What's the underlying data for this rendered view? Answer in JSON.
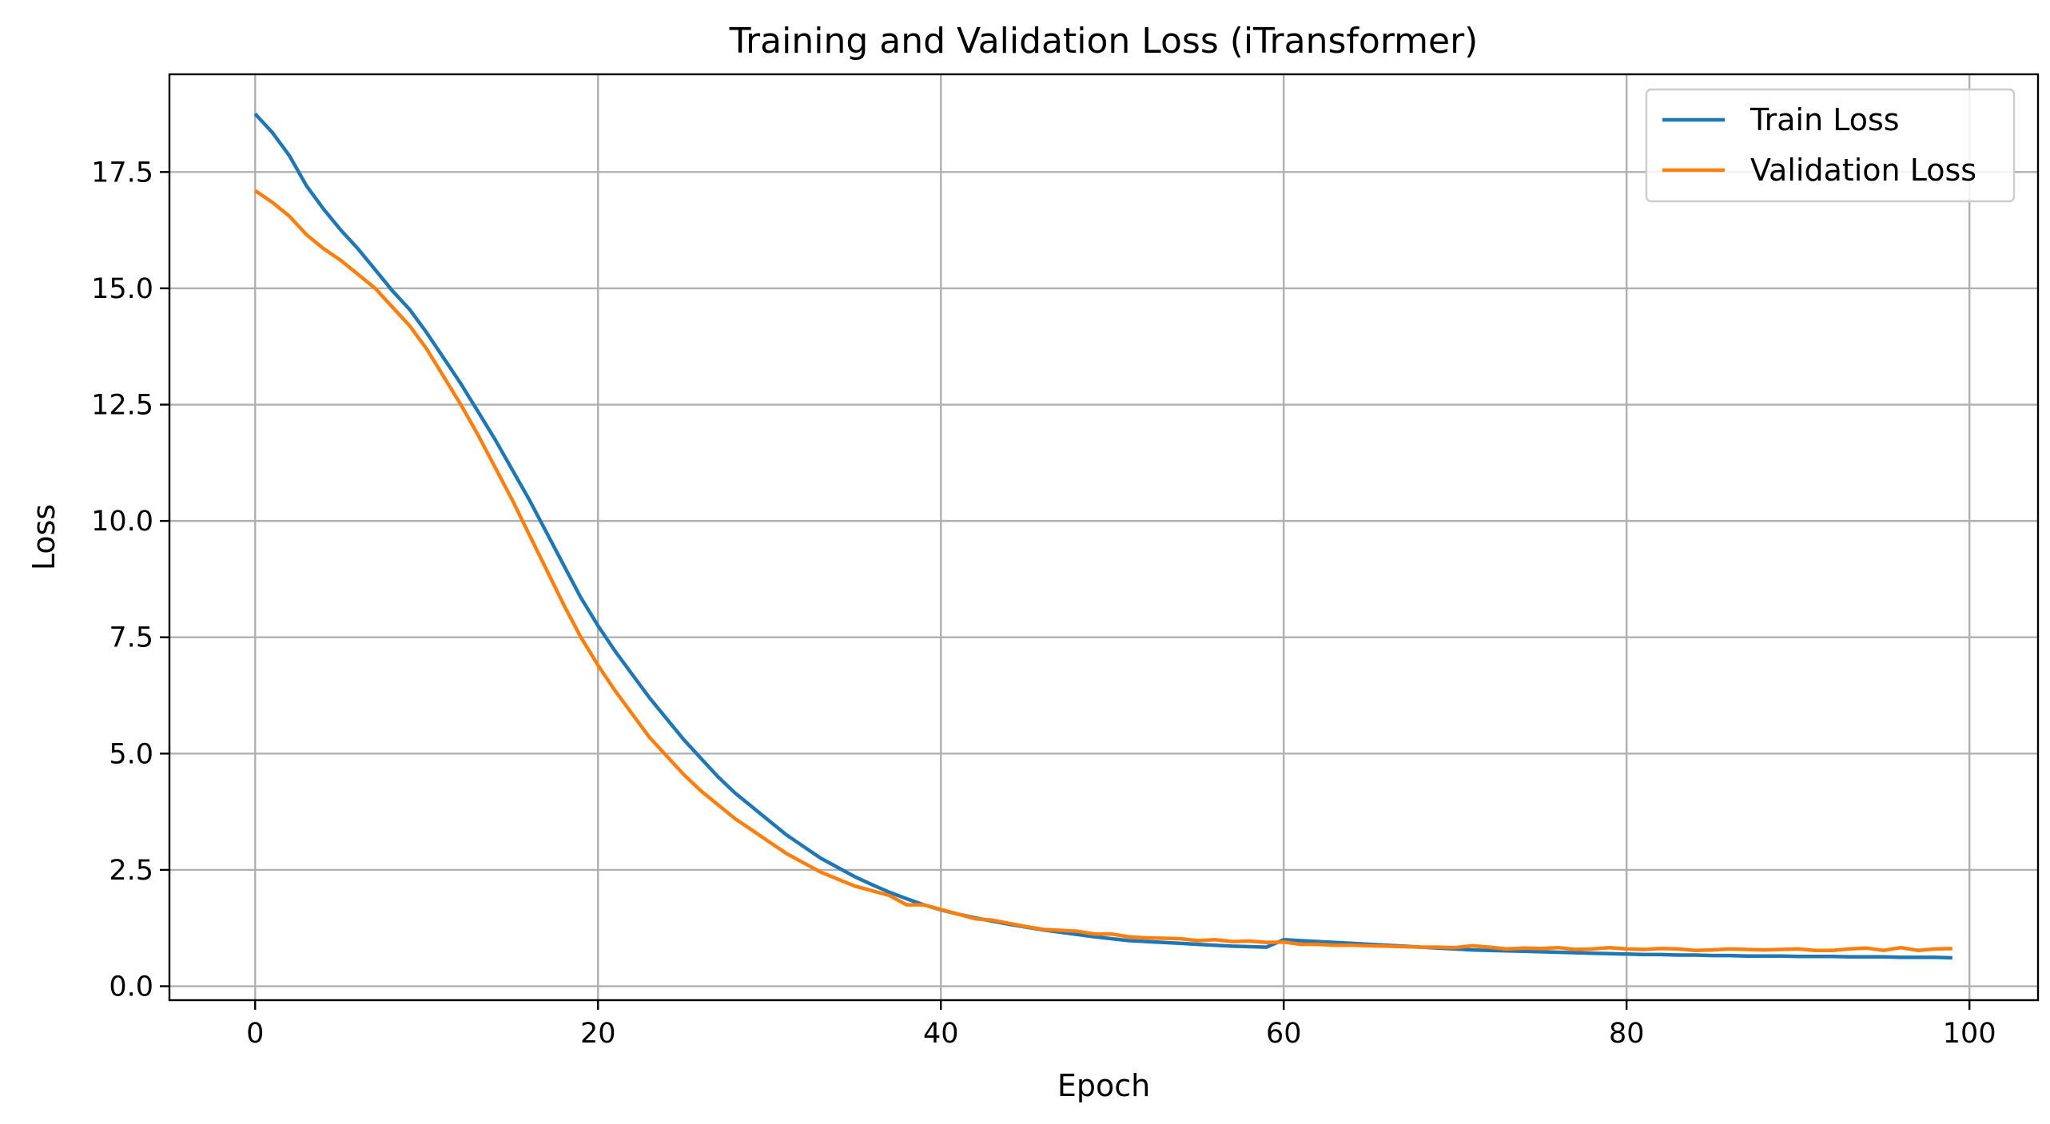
{
  "chart_data": {
    "type": "line",
    "title": "Training and Validation Loss (iTransformer)",
    "xlabel": "Epoch",
    "ylabel": "Loss",
    "xlim": [
      -5,
      104
    ],
    "ylim": [
      -0.3,
      19.6
    ],
    "xticks": [
      0,
      20,
      40,
      60,
      80,
      100
    ],
    "yticks": [
      0.0,
      2.5,
      5.0,
      7.5,
      10.0,
      12.5,
      15.0,
      17.5
    ],
    "x_tick_labels": [
      "0",
      "20",
      "40",
      "60",
      "80",
      "100"
    ],
    "y_tick_labels": [
      "0.0",
      "2.5",
      "5.0",
      "7.5",
      "10.0",
      "12.5",
      "15.0",
      "17.5"
    ],
    "grid": true,
    "legend": "upper-right",
    "x": [
      0,
      1,
      2,
      3,
      4,
      5,
      6,
      7,
      8,
      9,
      10,
      11,
      12,
      13,
      14,
      15,
      16,
      17,
      18,
      19,
      20,
      21,
      22,
      23,
      24,
      25,
      26,
      27,
      28,
      29,
      30,
      31,
      32,
      33,
      34,
      35,
      36,
      37,
      38,
      39,
      40,
      41,
      42,
      43,
      44,
      45,
      46,
      47,
      48,
      49,
      50,
      51,
      52,
      53,
      54,
      55,
      56,
      57,
      58,
      59,
      60,
      61,
      62,
      63,
      64,
      65,
      66,
      67,
      68,
      69,
      70,
      71,
      72,
      73,
      74,
      75,
      76,
      77,
      78,
      79,
      80,
      81,
      82,
      83,
      84,
      85,
      86,
      87,
      88,
      89,
      90,
      91,
      92,
      93,
      94,
      95,
      96,
      97,
      98,
      99
    ],
    "series": [
      {
        "name": "Train Loss",
        "color": "#1f77b4",
        "values": [
          18.75,
          18.35,
          17.85,
          17.2,
          16.7,
          16.25,
          15.85,
          15.4,
          14.95,
          14.55,
          14.05,
          13.5,
          12.95,
          12.35,
          11.75,
          11.1,
          10.45,
          9.75,
          9.05,
          8.35,
          7.75,
          7.2,
          6.7,
          6.2,
          5.75,
          5.3,
          4.9,
          4.5,
          4.15,
          3.85,
          3.55,
          3.25,
          3.0,
          2.75,
          2.55,
          2.35,
          2.18,
          2.02,
          1.88,
          1.75,
          1.64,
          1.55,
          1.47,
          1.4,
          1.33,
          1.27,
          1.21,
          1.16,
          1.11,
          1.06,
          1.02,
          0.98,
          0.96,
          0.94,
          0.92,
          0.9,
          0.88,
          0.86,
          0.85,
          0.84,
          1.0,
          0.98,
          0.96,
          0.94,
          0.92,
          0.9,
          0.88,
          0.86,
          0.84,
          0.82,
          0.8,
          0.78,
          0.77,
          0.76,
          0.75,
          0.74,
          0.73,
          0.72,
          0.71,
          0.7,
          0.69,
          0.68,
          0.68,
          0.67,
          0.67,
          0.66,
          0.66,
          0.65,
          0.65,
          0.65,
          0.64,
          0.64,
          0.64,
          0.63,
          0.63,
          0.63,
          0.62,
          0.62,
          0.62,
          0.61
        ]
      },
      {
        "name": "Validation Loss",
        "color": "#ff7f0e",
        "values": [
          17.1,
          16.85,
          16.55,
          16.15,
          15.85,
          15.6,
          15.3,
          15.0,
          14.6,
          14.2,
          13.7,
          13.1,
          12.5,
          11.85,
          11.15,
          10.45,
          9.7,
          8.95,
          8.2,
          7.5,
          6.9,
          6.35,
          5.85,
          5.35,
          4.95,
          4.55,
          4.2,
          3.9,
          3.6,
          3.35,
          3.1,
          2.85,
          2.65,
          2.45,
          2.3,
          2.15,
          2.05,
          1.95,
          1.75,
          1.75,
          1.65,
          1.55,
          1.45,
          1.42,
          1.35,
          1.28,
          1.22,
          1.2,
          1.18,
          1.12,
          1.12,
          1.06,
          1.04,
          1.03,
          1.02,
          0.98,
          1.0,
          0.96,
          0.97,
          0.94,
          0.95,
          0.9,
          0.9,
          0.88,
          0.88,
          0.87,
          0.86,
          0.85,
          0.84,
          0.84,
          0.83,
          0.87,
          0.84,
          0.8,
          0.82,
          0.81,
          0.83,
          0.79,
          0.8,
          0.83,
          0.8,
          0.79,
          0.81,
          0.8,
          0.77,
          0.78,
          0.8,
          0.79,
          0.78,
          0.79,
          0.8,
          0.77,
          0.77,
          0.8,
          0.82,
          0.77,
          0.83,
          0.77,
          0.8,
          0.81
        ]
      }
    ]
  }
}
